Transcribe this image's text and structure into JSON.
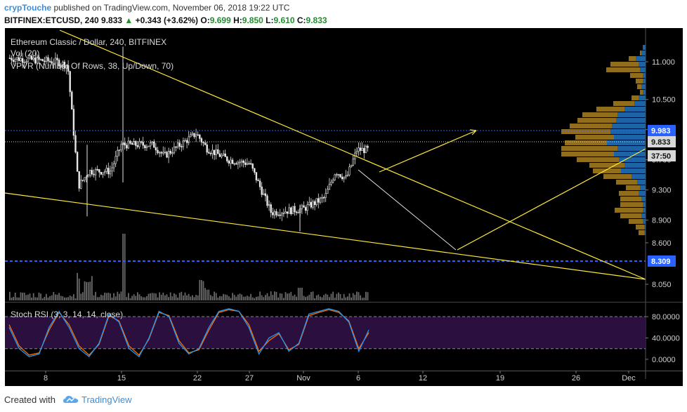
{
  "header": {
    "author": "crypTouche",
    "published": "published on TradingView.com, November 06, 2018 19:22 UTC",
    "symbol": "BITFINEX:ETCUSD, 240",
    "last": "9.833",
    "change": "+0.343 (+3.62%)",
    "o_label": "O:",
    "o": "9.699",
    "h_label": "H:",
    "h": "9.850",
    "l_label": "L:",
    "l": "9.610",
    "c_label": "C:",
    "c": "9.833"
  },
  "legend": {
    "title": "Ethereum Classic / Dollar, 240, BITFINEX",
    "vol": "Vol (20)",
    "vpvr": "VPVR (Number Of Rows, 38, Up/Down, 70)"
  },
  "price_axis": {
    "ticks": [
      "11.000",
      "10.500",
      "10.100",
      "9.700",
      "9.300",
      "8.900",
      "8.600",
      "8.050"
    ],
    "badges": [
      {
        "label": "9.983",
        "color": "#2962ff"
      },
      {
        "label": "9.833",
        "color": "#d8d8d8"
      },
      {
        "label": "37:50",
        "color": "#d8d8d8"
      },
      {
        "label": "8.309",
        "color": "#2962ff"
      }
    ]
  },
  "stoch": {
    "title": "Stoch RSI (3, 3, 14, 14, close)",
    "ticks": [
      "80.0000",
      "40.0000",
      "0.0000"
    ],
    "upper_band": 80,
    "lower_band": 20
  },
  "time_axis": {
    "labels": [
      "8",
      "15",
      "22",
      "27",
      "Nov",
      "6",
      "12",
      "19",
      "26",
      "Dec"
    ]
  },
  "footer": {
    "created_with": "Created with",
    "brand": "TradingView"
  },
  "colors": {
    "background": "#000000",
    "candle": "#e6e6e6",
    "trendline": "#ffeb3b",
    "projection": "#e0e0e0",
    "level_line": "#2962ff",
    "stoch_k": "#2196f3",
    "stoch_d": "#ff6d00",
    "stoch_band": "#2a0f3f",
    "vpvr_up": "#1f6fb8",
    "vpvr_down": "#a07a1e"
  },
  "chart_data": {
    "type": "candlestick",
    "symbol": "BITFINEX:ETCUSD",
    "interval": "240",
    "ylim": [
      7.9,
      11.35
    ],
    "ohlc_last": {
      "open": 9.699,
      "high": 9.85,
      "low": 9.61,
      "close": 9.833
    },
    "price_path_key_points": [
      {
        "x": "Nov 3",
        "y": 11.05
      },
      {
        "x": "Oct 9",
        "y": 11.0
      },
      {
        "x": "Oct 10",
        "y": 10.95
      },
      {
        "x": "Oct 11",
        "y": 9.35
      },
      {
        "x": "Oct 12",
        "y": 9.55
      },
      {
        "x": "Oct 14",
        "y": 9.55
      },
      {
        "x": "Oct 15",
        "y": 9.9
      },
      {
        "x": "Oct 18",
        "y": 9.9
      },
      {
        "x": "Oct 19",
        "y": 9.75
      },
      {
        "x": "Oct 22",
        "y": 10.05
      },
      {
        "x": "Oct 23",
        "y": 9.85
      },
      {
        "x": "Oct 25",
        "y": 9.7
      },
      {
        "x": "Oct 27",
        "y": 9.65
      },
      {
        "x": "Oct 29",
        "y": 9.0
      },
      {
        "x": "Nov 1",
        "y": 9.05
      },
      {
        "x": "Nov 3",
        "y": 9.2
      },
      {
        "x": "Nov 4",
        "y": 9.55
      },
      {
        "x": "Nov 5",
        "y": 9.45
      },
      {
        "x": "Nov 6",
        "y": 9.833
      }
    ],
    "levels": [
      9.983,
      9.833,
      8.309
    ],
    "annotations": [
      {
        "type": "trendline",
        "from": {
          "x": "Oct 5",
          "y": 11.45
        },
        "to": {
          "x": "Dec 1",
          "y": 8.1
        }
      },
      {
        "type": "trendline",
        "from": {
          "x": "Oct 4",
          "y": 9.3
        },
        "to": {
          "x": "Dec 1",
          "y": 8.1
        }
      },
      {
        "type": "trendline",
        "from": {
          "x": "Nov 6",
          "y": 9.5
        },
        "to": {
          "x": "Dec 1",
          "y": 9.7
        }
      },
      {
        "type": "arrow",
        "from": {
          "x": "Nov 8",
          "y": 9.45
        },
        "to": {
          "x": "Nov 17",
          "y": 9.95
        }
      },
      {
        "type": "projection",
        "points": [
          {
            "x": "Nov 6",
            "y": 9.45
          },
          {
            "x": "Nov 15",
            "y": 8.45
          }
        ]
      }
    ],
    "volume": [
      {
        "x": "Oct 11",
        "y": 2.0
      },
      {
        "x": "Oct 15",
        "y": 8.0
      },
      {
        "x": "Oct 22",
        "y": 1.5
      },
      {
        "x": "Oct 29",
        "y": 1.0
      },
      {
        "x": "Nov 6",
        "y": 0.6
      }
    ],
    "stoch_rsi": {
      "k": [
        60,
        20,
        5,
        10,
        60,
        90,
        60,
        20,
        5,
        30,
        85,
        70,
        20,
        5,
        40,
        90,
        80,
        30,
        10,
        20,
        60,
        90,
        95,
        90,
        60,
        10,
        40,
        50,
        15,
        30,
        85,
        90,
        95,
        90,
        70,
        15,
        55
      ],
      "d": [
        65,
        25,
        8,
        12,
        55,
        88,
        65,
        25,
        8,
        28,
        82,
        72,
        25,
        8,
        38,
        88,
        82,
        35,
        12,
        18,
        55,
        88,
        93,
        90,
        65,
        15,
        35,
        48,
        18,
        28,
        82,
        88,
        93,
        88,
        72,
        20,
        50
      ],
      "ylim": [
        -8,
        100
      ]
    }
  }
}
